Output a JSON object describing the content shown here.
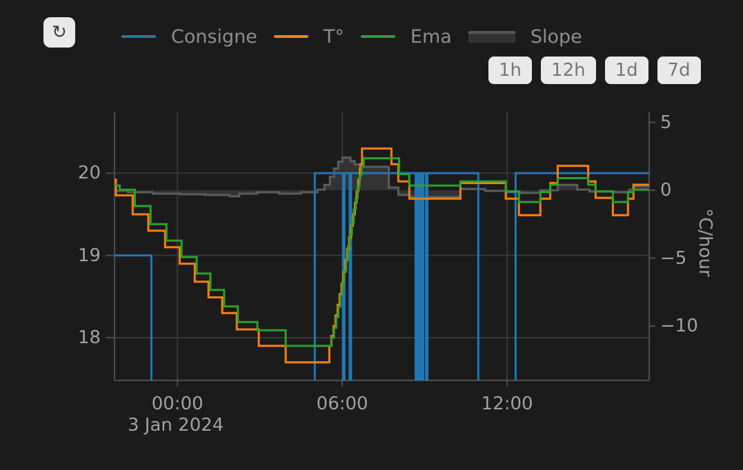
{
  "toolbar": {
    "refresh_icon": "↻",
    "range_buttons": [
      {
        "label": "1h"
      },
      {
        "label": "12h"
      },
      {
        "label": "1d"
      },
      {
        "label": "7d"
      }
    ]
  },
  "legend": {
    "items": [
      {
        "label": "Consigne",
        "color": "#1f77b4",
        "type": "line"
      },
      {
        "label": "T°",
        "color": "#ff7f0e",
        "type": "line"
      },
      {
        "label": "Ema",
        "color": "#2ca02c",
        "type": "line"
      },
      {
        "label": "Slope",
        "color": "#575757",
        "fill": "#333333",
        "type": "band"
      }
    ]
  },
  "chart_data": {
    "type": "line",
    "title": "",
    "x_unit": "hours_from_2024-01-03T00:00",
    "x_axis": {
      "range_hours": [
        -2.29,
        17.17
      ],
      "tick_positions_hours": [
        0,
        6,
        12
      ],
      "tick_labels": [
        "00:00",
        "06:00",
        "12:00"
      ],
      "date_label": "3 Jan 2024",
      "grid": true
    },
    "y_axis_left": {
      "range": [
        17.48,
        20.74
      ],
      "ticks": [
        20,
        19,
        18
      ],
      "tick_labels": [
        "20",
        "19",
        "18"
      ],
      "grid": true
    },
    "y_axis_right": {
      "title": "°C/hour",
      "range": [
        -14.01,
        5.74
      ],
      "ticks": [
        5,
        0,
        -5,
        -10
      ],
      "tick_labels": [
        "5",
        "0",
        "−5",
        "−10"
      ],
      "grid": false
    },
    "series": [
      {
        "name": "Consigne",
        "color": "#1f77b4",
        "axis": "left",
        "line_width": 3,
        "note": "setpoint steps; value 16.5 means below visible range (clipped at plot bottom)",
        "points": [
          [
            -2.29,
            19
          ],
          [
            -0.95,
            16.5
          ],
          [
            5.0,
            20
          ],
          [
            6.03,
            16.5
          ],
          [
            6.08,
            20
          ],
          [
            6.27,
            16.5
          ],
          [
            6.32,
            20
          ],
          [
            8.67,
            16.5
          ],
          [
            8.7,
            20
          ],
          [
            8.77,
            16.5
          ],
          [
            8.8,
            20
          ],
          [
            8.84,
            16.5
          ],
          [
            8.87,
            20
          ],
          [
            8.92,
            16.5
          ],
          [
            8.95,
            20
          ],
          [
            9.05,
            16.5
          ],
          [
            9.1,
            20
          ],
          [
            10.95,
            16.5
          ],
          [
            12.31,
            20
          ]
        ]
      },
      {
        "name": "T°",
        "color": "#ff7f0e",
        "axis": "left",
        "line_width": 3,
        "points": [
          [
            -2.29,
            19.92
          ],
          [
            -2.24,
            19.73
          ],
          [
            -1.63,
            19.5
          ],
          [
            -1.06,
            19.3
          ],
          [
            -0.45,
            19.1
          ],
          [
            0.08,
            18.9
          ],
          [
            0.63,
            18.68
          ],
          [
            1.13,
            18.49
          ],
          [
            1.63,
            18.3
          ],
          [
            2.16,
            18.1
          ],
          [
            2.96,
            17.9
          ],
          [
            3.94,
            17.7
          ],
          [
            5.53,
            17.9
          ],
          [
            5.6,
            18.02
          ],
          [
            5.68,
            18.14
          ],
          [
            5.75,
            18.27
          ],
          [
            5.83,
            18.4
          ],
          [
            5.9,
            18.53
          ],
          [
            5.97,
            18.66
          ],
          [
            6.04,
            18.8
          ],
          [
            6.11,
            18.94
          ],
          [
            6.18,
            19.08
          ],
          [
            6.25,
            19.22
          ],
          [
            6.32,
            19.36
          ],
          [
            6.39,
            19.5
          ],
          [
            6.46,
            19.64
          ],
          [
            6.52,
            19.78
          ],
          [
            6.58,
            19.92
          ],
          [
            6.64,
            20.05
          ],
          [
            6.66,
            20.11
          ],
          [
            6.72,
            20.3
          ],
          [
            7.79,
            20.11
          ],
          [
            8.04,
            19.9
          ],
          [
            8.44,
            19.69
          ],
          [
            10.3,
            19.88
          ],
          [
            11.95,
            19.69
          ],
          [
            12.43,
            19.49
          ],
          [
            13.21,
            19.69
          ],
          [
            13.57,
            19.88
          ],
          [
            13.84,
            20.09
          ],
          [
            14.95,
            19.9
          ],
          [
            15.22,
            19.7
          ],
          [
            15.85,
            19.49
          ],
          [
            16.4,
            19.69
          ],
          [
            16.6,
            19.86
          ]
        ]
      },
      {
        "name": "Ema",
        "color": "#2ca02c",
        "axis": "left",
        "line_width": 3,
        "points": [
          [
            -2.29,
            19.85
          ],
          [
            -2.1,
            19.8
          ],
          [
            -1.55,
            19.6
          ],
          [
            -0.98,
            19.38
          ],
          [
            -0.4,
            19.18
          ],
          [
            0.15,
            18.98
          ],
          [
            0.7,
            18.78
          ],
          [
            1.2,
            18.58
          ],
          [
            1.7,
            18.38
          ],
          [
            2.2,
            18.19
          ],
          [
            2.91,
            18.09
          ],
          [
            3.94,
            17.9
          ],
          [
            5.61,
            18.0
          ],
          [
            5.7,
            18.12
          ],
          [
            5.78,
            18.25
          ],
          [
            5.86,
            18.38
          ],
          [
            5.93,
            18.52
          ],
          [
            6.0,
            18.66
          ],
          [
            6.07,
            18.81
          ],
          [
            6.14,
            18.96
          ],
          [
            6.21,
            19.11
          ],
          [
            6.28,
            19.26
          ],
          [
            6.35,
            19.41
          ],
          [
            6.42,
            19.56
          ],
          [
            6.49,
            19.7
          ],
          [
            6.56,
            19.84
          ],
          [
            6.63,
            19.97
          ],
          [
            6.7,
            20.08
          ],
          [
            6.78,
            20.18
          ],
          [
            8.07,
            19.99
          ],
          [
            8.44,
            19.85
          ],
          [
            10.3,
            19.9
          ],
          [
            11.95,
            19.78
          ],
          [
            12.43,
            19.65
          ],
          [
            13.21,
            19.77
          ],
          [
            13.57,
            19.86
          ],
          [
            13.84,
            19.94
          ],
          [
            14.95,
            19.86
          ],
          [
            15.22,
            19.78
          ],
          [
            15.85,
            19.65
          ],
          [
            16.4,
            19.77
          ],
          [
            16.6,
            19.8
          ]
        ]
      },
      {
        "name": "Slope",
        "color": "#5c5c5c",
        "axis": "right",
        "line_width": 3,
        "fill": "tozeroy",
        "fill_color": "#333333",
        "points": [
          [
            -2.29,
            -0.05
          ],
          [
            -1.8,
            -0.15
          ],
          [
            -0.9,
            -0.25
          ],
          [
            0.1,
            -0.3
          ],
          [
            1.0,
            -0.35
          ],
          [
            1.9,
            -0.45
          ],
          [
            2.25,
            -0.25
          ],
          [
            2.9,
            -0.15
          ],
          [
            3.7,
            -0.25
          ],
          [
            4.5,
            -0.15
          ],
          [
            5.1,
            0.05
          ],
          [
            5.35,
            0.4
          ],
          [
            5.55,
            1.0
          ],
          [
            5.7,
            1.6
          ],
          [
            5.85,
            2.1
          ],
          [
            6.0,
            2.4
          ],
          [
            6.3,
            2.15
          ],
          [
            6.45,
            1.9
          ],
          [
            6.68,
            1.73
          ],
          [
            7.69,
            0.2
          ],
          [
            8.04,
            -0.35
          ],
          [
            8.44,
            -0.5
          ],
          [
            10.3,
            0.1
          ],
          [
            11.2,
            -0.05
          ],
          [
            12.0,
            -0.15
          ],
          [
            12.5,
            -0.2
          ],
          [
            13.2,
            0.0
          ],
          [
            13.85,
            0.4
          ],
          [
            14.55,
            0.05
          ],
          [
            15.0,
            -0.1
          ],
          [
            15.9,
            -0.15
          ],
          [
            16.45,
            0.05
          ],
          [
            16.6,
            0.3
          ]
        ]
      }
    ],
    "colors": {
      "background": "#1b1b1c",
      "gridline": "#383838",
      "axis_line": "#4e4e4e",
      "tick_text": "#a0a0a0"
    }
  }
}
